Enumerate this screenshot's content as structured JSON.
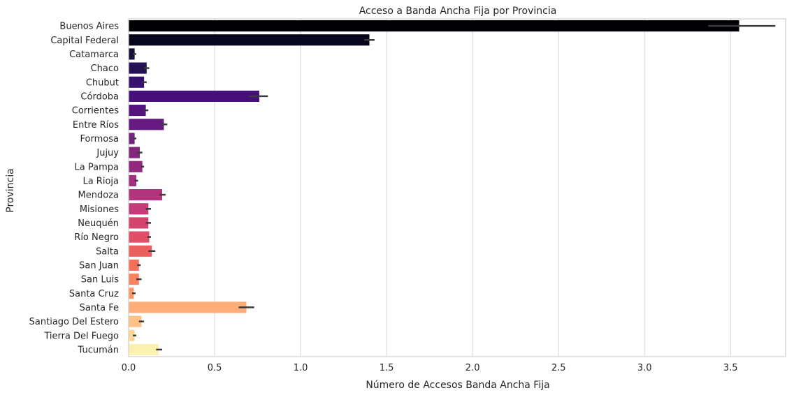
{
  "chart_data": {
    "type": "bar",
    "orientation": "horizontal",
    "title": "Acceso a Banda Ancha Fija por Provincia",
    "xlabel": "Número de Accesos Banda Ancha Fija",
    "ylabel": "Provincia",
    "xlim": [
      0,
      3.82
    ],
    "x_ticks": [
      0.0,
      0.5,
      1.0,
      1.5,
      2.0,
      2.5,
      3.0,
      3.5
    ],
    "x_tick_labels": [
      "0.0",
      "0.5",
      "1.0",
      "1.5",
      "2.0",
      "2.5",
      "3.0",
      "3.5"
    ],
    "grid": "vertical",
    "palette": "magma",
    "categories": [
      "Buenos Aires",
      "Capital Federal",
      "Catamarca",
      "Chaco",
      "Chubut",
      "Córdoba",
      "Corrientes",
      "Entre Ríos",
      "Formosa",
      "Jujuy",
      "La Pampa",
      "La Rioja",
      "Mendoza",
      "Misiones",
      "Neuquén",
      "Río Negro",
      "Salta",
      "San Juan",
      "San Luis",
      "Santa Cruz",
      "Santa Fe",
      "Santiago Del Estero",
      "Tierra Del Fuego",
      "Tucumán"
    ],
    "values": [
      3.55,
      1.4,
      0.035,
      0.105,
      0.09,
      0.76,
      0.1,
      0.205,
      0.035,
      0.065,
      0.08,
      0.045,
      0.195,
      0.115,
      0.115,
      0.12,
      0.135,
      0.06,
      0.06,
      0.03,
      0.685,
      0.075,
      0.035,
      0.175
    ],
    "error_low": [
      3.37,
      1.37,
      0.025,
      0.09,
      0.08,
      0.7,
      0.09,
      0.19,
      0.025,
      0.05,
      0.07,
      0.035,
      0.18,
      0.1,
      0.1,
      0.11,
      0.115,
      0.05,
      0.045,
      0.02,
      0.64,
      0.06,
      0.025,
      0.16
    ],
    "error_high": [
      3.76,
      1.43,
      0.045,
      0.12,
      0.105,
      0.81,
      0.115,
      0.225,
      0.045,
      0.08,
      0.09,
      0.055,
      0.215,
      0.13,
      0.13,
      0.13,
      0.155,
      0.07,
      0.075,
      0.04,
      0.73,
      0.09,
      0.045,
      0.195
    ],
    "colors": [
      "#000004",
      "#07061c",
      "#150e38",
      "#251255",
      "#35106f",
      "#460f7a",
      "#55147d",
      "#641a80",
      "#74217f",
      "#83267e",
      "#93297e",
      "#a3307e",
      "#b3347c",
      "#c33c77",
      "#d3436e",
      "#e04f67",
      "#eb5f5e",
      "#f4705b",
      "#f8845f",
      "#fb9869",
      "#fcad78",
      "#fec287",
      "#fed69a",
      "#fcf0b1"
    ]
  }
}
